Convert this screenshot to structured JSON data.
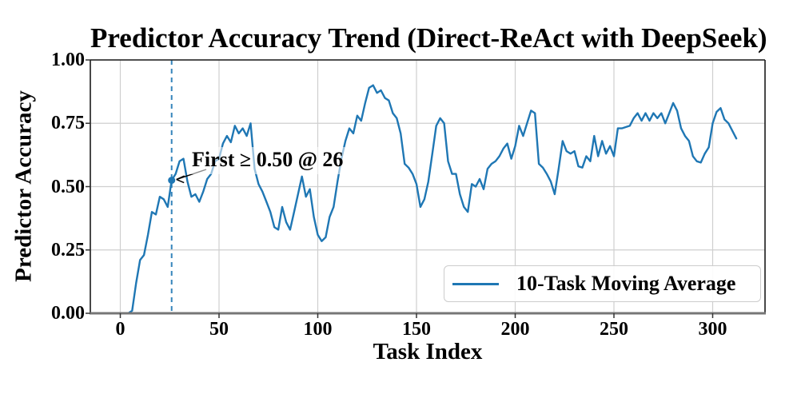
{
  "figure": {
    "title": "Predictor Accuracy Trend (Direct-ReAct with DeepSeek)",
    "xlabel": "Task Index",
    "ylabel": "Predictor Accuracy"
  },
  "legend": {
    "label": "10-Task Moving Average",
    "line_color": "#1f77b4"
  },
  "annotation": {
    "text": "First ≥ 0.50 @ 26",
    "task_index": 26,
    "value": 0.525
  },
  "colors": {
    "line": "#1f77b4",
    "vline": "#1f77b4",
    "grid": "#cfcfcf",
    "spine": "#1a1a1a",
    "bottom_spine": "#767676",
    "text": "#000000",
    "background": "#ffffff"
  },
  "chart_data": {
    "type": "line",
    "title": "Predictor Accuracy Trend (Direct-ReAct with DeepSeek)",
    "xlabel": "Task Index",
    "ylabel": "Predictor Accuracy",
    "xlim": [
      -15,
      327
    ],
    "ylim": [
      0.0,
      1.0
    ],
    "xticks": [
      0,
      50,
      100,
      150,
      200,
      250,
      300
    ],
    "yticks": [
      "0.00",
      "0.25",
      "0.50",
      "0.75",
      "1.00"
    ],
    "ytick_values": [
      0.0,
      0.25,
      0.5,
      0.75,
      1.0
    ],
    "grid": true,
    "legend_position": "lower right",
    "vline": {
      "x": 26,
      "style": "dashed",
      "color": "#1f77b4"
    },
    "marker_point": {
      "x": 26,
      "y": 0.525
    },
    "annotation": {
      "text": "First ≥ 0.50 @ 26",
      "x": 26,
      "y": 0.525
    },
    "series": [
      {
        "name": "10-Task Moving Average",
        "color": "#1f77b4",
        "x": [
          2,
          4,
          6,
          8,
          10,
          12,
          14,
          16,
          18,
          20,
          22,
          24,
          26,
          28,
          30,
          32,
          34,
          36,
          38,
          40,
          42,
          44,
          46,
          48,
          50,
          52,
          54,
          56,
          58,
          60,
          62,
          64,
          66,
          68,
          70,
          72,
          74,
          76,
          78,
          80,
          82,
          84,
          86,
          88,
          90,
          92,
          94,
          96,
          98,
          100,
          102,
          104,
          106,
          108,
          110,
          112,
          114,
          116,
          118,
          120,
          122,
          124,
          126,
          128,
          130,
          132,
          134,
          136,
          138,
          140,
          142,
          144,
          146,
          148,
          150,
          152,
          154,
          156,
          158,
          160,
          162,
          164,
          166,
          168,
          170,
          172,
          174,
          176,
          178,
          180,
          182,
          184,
          186,
          188,
          190,
          192,
          194,
          196,
          198,
          200,
          202,
          204,
          206,
          208,
          210,
          212,
          214,
          216,
          218,
          220,
          222,
          224,
          226,
          228,
          230,
          232,
          234,
          236,
          238,
          240,
          242,
          244,
          246,
          248,
          250,
          252,
          254,
          256,
          258,
          260,
          262,
          264,
          266,
          268,
          270,
          272,
          274,
          276,
          278,
          280,
          282,
          284,
          286,
          288,
          290,
          292,
          294,
          296,
          298,
          300,
          302,
          304,
          306,
          308,
          310,
          312
        ],
        "y": [
          0.0,
          0.0,
          0.01,
          0.12,
          0.21,
          0.23,
          0.31,
          0.4,
          0.39,
          0.46,
          0.45,
          0.42,
          0.525,
          0.55,
          0.6,
          0.61,
          0.52,
          0.46,
          0.47,
          0.44,
          0.48,
          0.53,
          0.55,
          0.6,
          0.61,
          0.67,
          0.7,
          0.675,
          0.74,
          0.71,
          0.73,
          0.7,
          0.75,
          0.57,
          0.51,
          0.48,
          0.44,
          0.4,
          0.34,
          0.33,
          0.42,
          0.36,
          0.33,
          0.4,
          0.47,
          0.54,
          0.46,
          0.49,
          0.38,
          0.31,
          0.285,
          0.3,
          0.38,
          0.42,
          0.52,
          0.61,
          0.68,
          0.73,
          0.71,
          0.78,
          0.76,
          0.83,
          0.89,
          0.9,
          0.87,
          0.88,
          0.85,
          0.84,
          0.79,
          0.77,
          0.71,
          0.59,
          0.575,
          0.55,
          0.51,
          0.42,
          0.45,
          0.52,
          0.63,
          0.74,
          0.77,
          0.75,
          0.6,
          0.55,
          0.55,
          0.47,
          0.42,
          0.4,
          0.51,
          0.5,
          0.53,
          0.49,
          0.57,
          0.59,
          0.6,
          0.62,
          0.65,
          0.67,
          0.61,
          0.66,
          0.74,
          0.7,
          0.75,
          0.8,
          0.79,
          0.59,
          0.575,
          0.55,
          0.52,
          0.47,
          0.57,
          0.68,
          0.64,
          0.63,
          0.64,
          0.58,
          0.575,
          0.62,
          0.6,
          0.7,
          0.62,
          0.68,
          0.63,
          0.66,
          0.62,
          0.73,
          0.73,
          0.735,
          0.74,
          0.77,
          0.79,
          0.76,
          0.79,
          0.76,
          0.79,
          0.77,
          0.79,
          0.75,
          0.79,
          0.83,
          0.8,
          0.73,
          0.7,
          0.68,
          0.62,
          0.6,
          0.595,
          0.63,
          0.655,
          0.75,
          0.795,
          0.81,
          0.765,
          0.75,
          0.72,
          0.69
        ]
      }
    ]
  }
}
